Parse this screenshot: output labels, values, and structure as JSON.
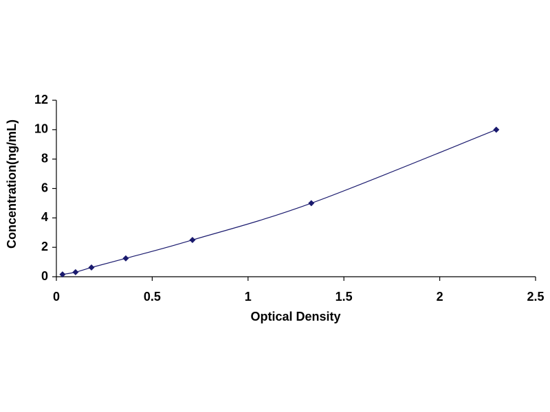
{
  "chart_data": {
    "type": "scatter",
    "line": "smooth",
    "x_label": "Optical Density",
    "y_label": "Concentration(ng/mL)",
    "x": [
      0.032,
      0.1,
      0.183,
      0.362,
      0.71,
      1.33,
      2.295
    ],
    "values": [
      0.16,
      0.31,
      0.63,
      1.25,
      2.5,
      5,
      10
    ],
    "color": "#1a1a6e",
    "xlim": [
      0,
      2.5
    ],
    "xticks": [
      0,
      0.5,
      1,
      1.5,
      2,
      2.5
    ],
    "ylim": [
      0,
      12
    ],
    "yticks": [
      0,
      2,
      4,
      6,
      8,
      10,
      12
    ],
    "grid": false
  }
}
